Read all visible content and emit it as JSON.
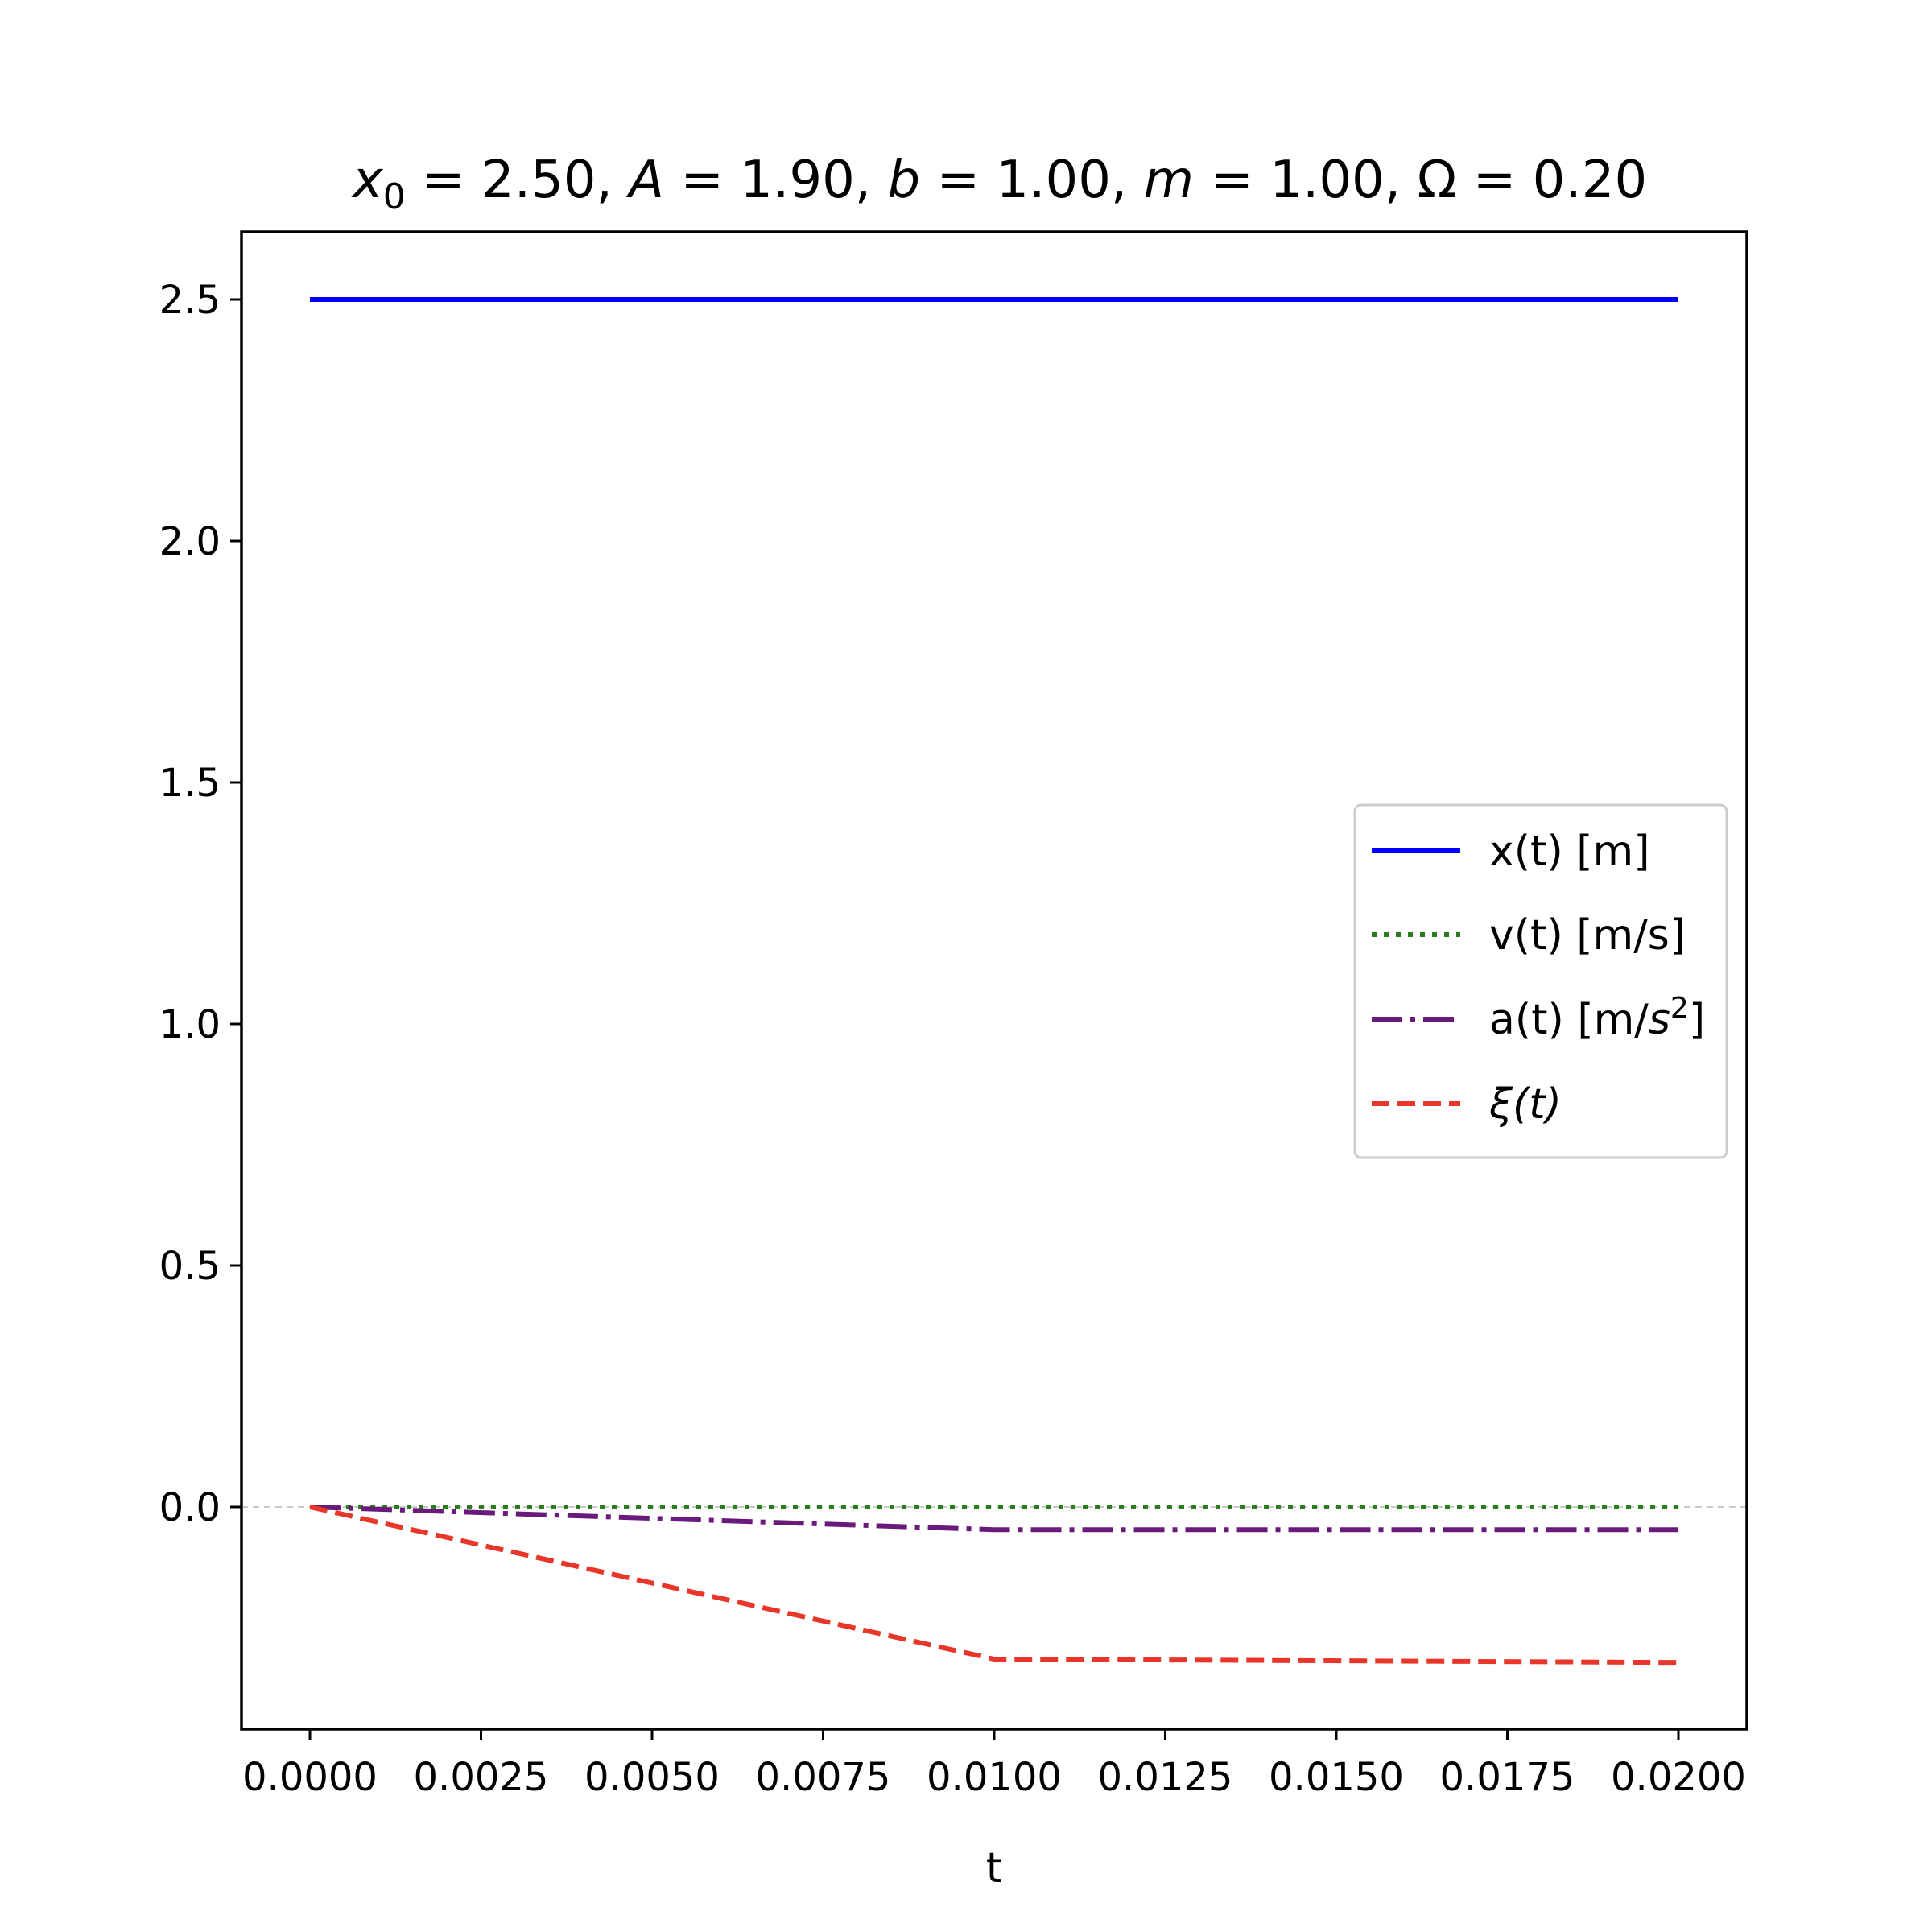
{
  "chart_data": {
    "type": "line",
    "title": {
      "x0_label": "x",
      "x0_sub": "0",
      "x0_value": " = 2.50, ",
      "a_sym": "A",
      "a_value": " = 1.90, ",
      "b_sym": "b",
      "b_value": " = 1.00, ",
      "m_sym": "m",
      "m_value": " = 1.00, ",
      "omega_text": "Ω = 0.20"
    },
    "xlabel": "t",
    "ylabel": "",
    "xlim": [
      -0.001,
      0.021
    ],
    "ylim": [
      -0.46,
      2.64
    ],
    "x_ticks": [
      "0.0000",
      "0.0025",
      "0.0050",
      "0.0075",
      "0.0100",
      "0.0125",
      "0.0150",
      "0.0175",
      "0.0200"
    ],
    "x_tick_values": [
      0.0,
      0.0025,
      0.005,
      0.0075,
      0.01,
      0.0125,
      0.015,
      0.0175,
      0.02
    ],
    "y_ticks": [
      "0.0",
      "0.5",
      "1.0",
      "1.5",
      "2.0",
      "2.5"
    ],
    "y_tick_values": [
      0.0,
      0.5,
      1.0,
      1.5,
      2.0,
      2.5
    ],
    "grid": false,
    "zero_reference_line": true,
    "legend_position": "center-right",
    "x": [
      0.0,
      0.01,
      0.02
    ],
    "series": [
      {
        "name": "x(t) [m]",
        "values": [
          2.5,
          2.5,
          2.5
        ],
        "color": "#0000ff",
        "style": "solid"
      },
      {
        "name": "v(t) [m/s]",
        "values": [
          0.0,
          0.0,
          0.0
        ],
        "color": "#2a7d1c",
        "style": "dotted"
      },
      {
        "name": "a(t) [m/s2]",
        "values": [
          0.0,
          -0.047,
          -0.047
        ],
        "color": "#6a1a7a",
        "style": "dashdot"
      },
      {
        "name": "ξ(t)",
        "values": [
          0.0,
          -0.315,
          -0.322
        ],
        "color": "#e8372a",
        "style": "dashed"
      }
    ],
    "legend": {
      "x_label": "x(t) [m]",
      "v_label": "v(t) [m/s]",
      "a_label_pre": "a(t) [m/",
      "a_label_s": "s",
      "a_label_sup": "2",
      "a_label_post": "]",
      "xi_sym": "ξ",
      "xi_arg": "(t)"
    }
  }
}
